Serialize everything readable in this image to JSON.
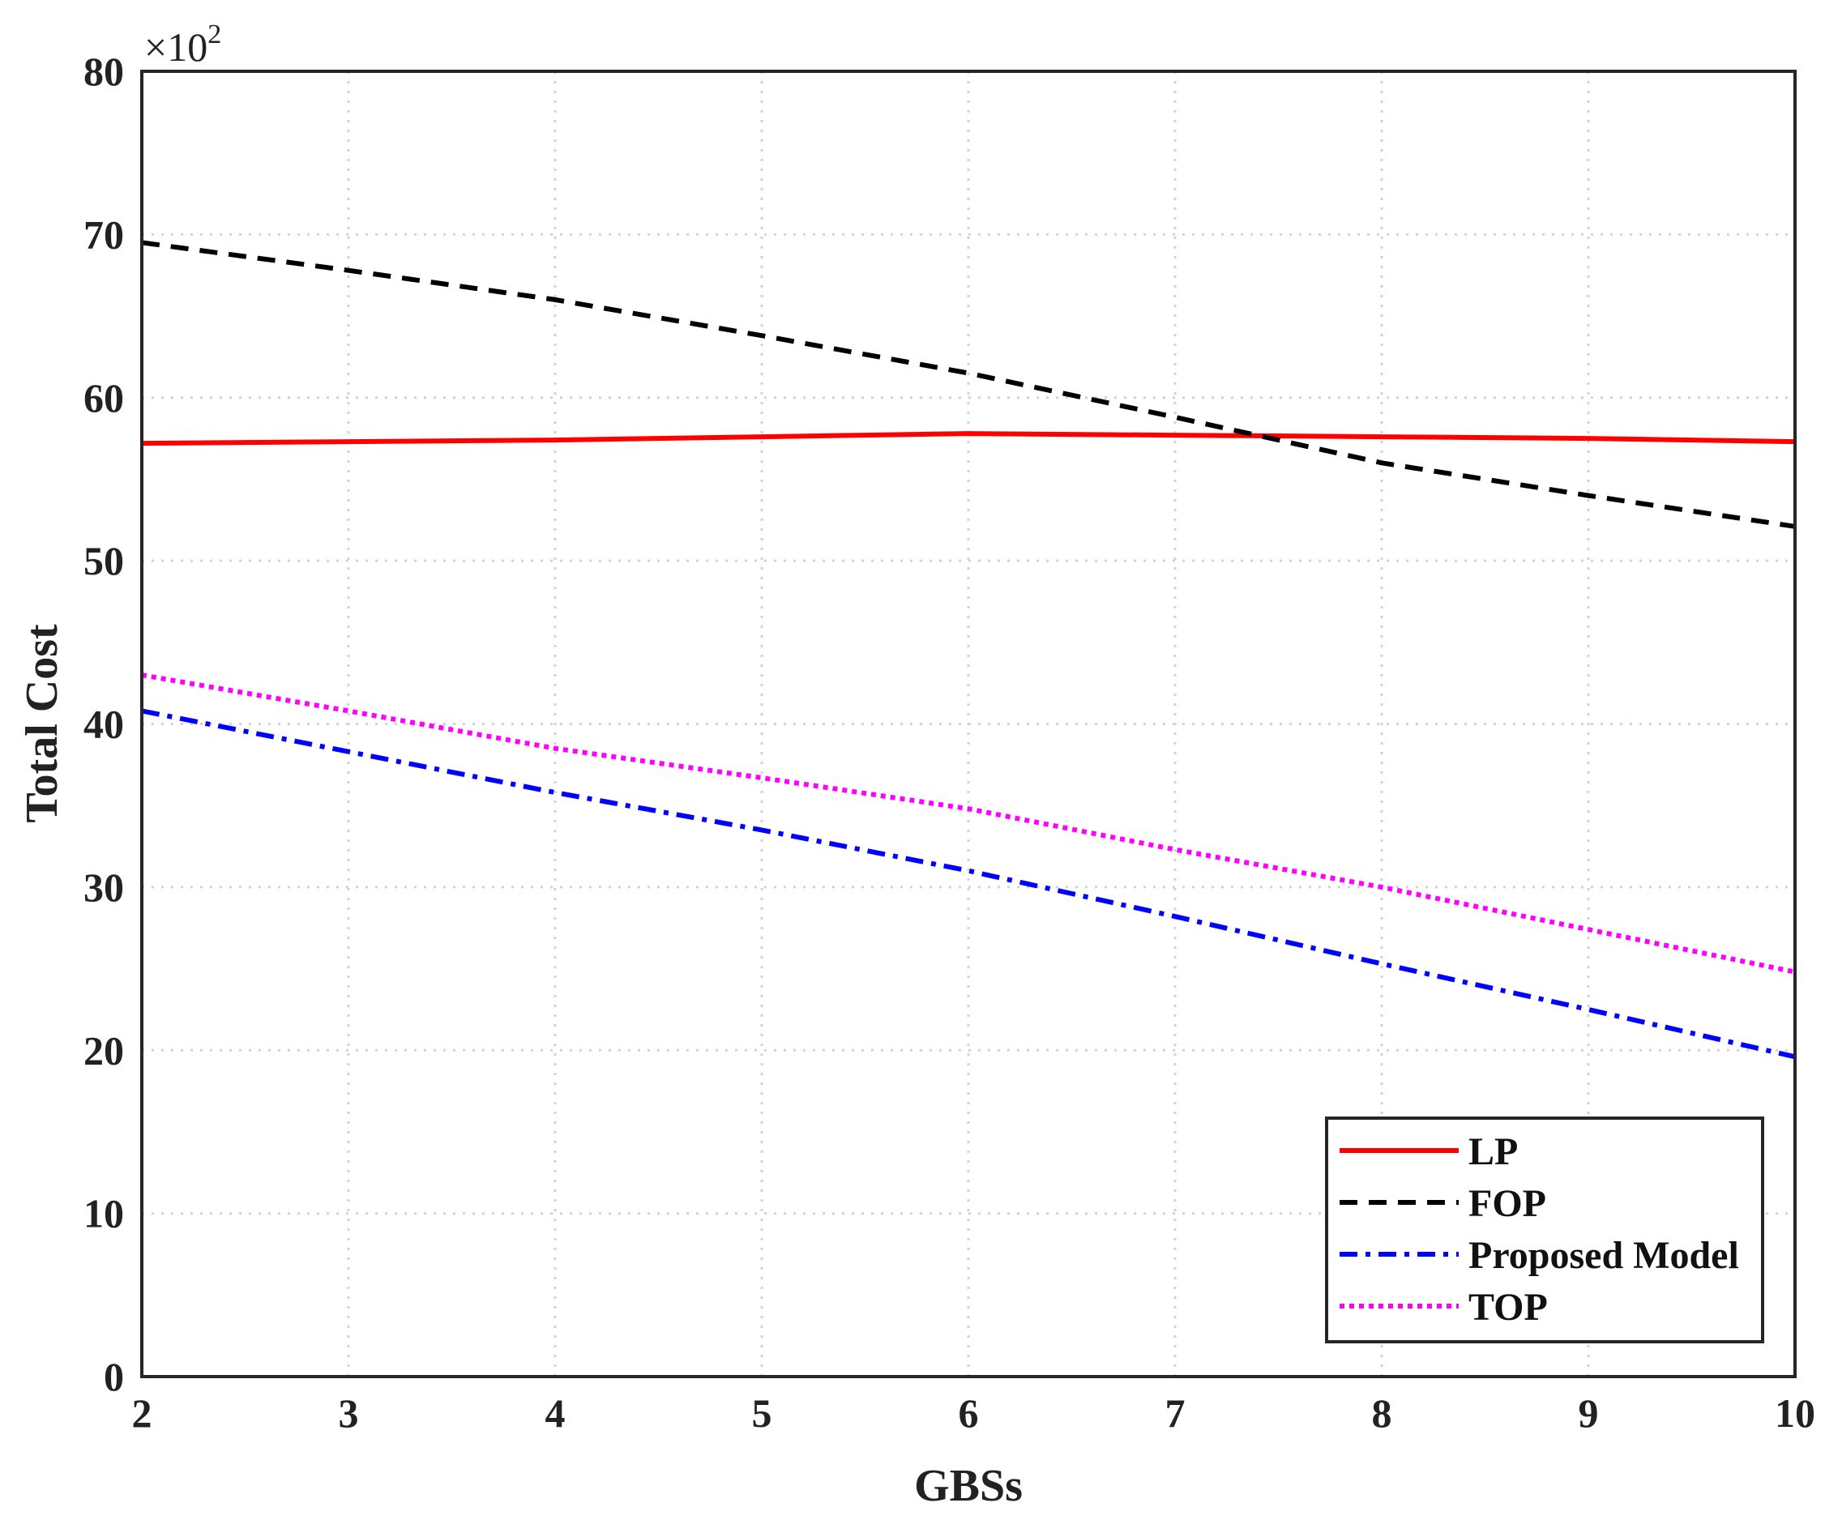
{
  "chart_data": {
    "type": "line",
    "xlabel": "GBSs",
    "ylabel": "Total Cost",
    "y_multiplier": {
      "base": "×10",
      "exponent": "2"
    },
    "xlim": [
      2,
      10
    ],
    "ylim": [
      0,
      80
    ],
    "xticks": [
      2,
      3,
      4,
      5,
      6,
      7,
      8,
      9,
      10
    ],
    "yticks": [
      0,
      10,
      20,
      30,
      40,
      50,
      60,
      70,
      80
    ],
    "grid": true,
    "legend_position": "bottom-right",
    "series": [
      {
        "name": "LP",
        "color": "#ff0000",
        "style": "solid",
        "x": [
          2,
          3,
          4,
          5,
          6,
          7,
          8,
          9,
          10
        ],
        "y": [
          57.2,
          57.3,
          57.4,
          57.6,
          57.8,
          57.7,
          57.6,
          57.5,
          57.3
        ]
      },
      {
        "name": "FOP",
        "color": "#000000",
        "style": "dashed",
        "x": [
          2,
          3,
          4,
          5,
          6,
          7,
          8,
          9,
          10
        ],
        "y": [
          69.5,
          67.8,
          66.0,
          63.8,
          61.5,
          58.8,
          56.0,
          54.0,
          52.1
        ]
      },
      {
        "name": "Proposed Model",
        "color": "#0000ff",
        "style": "dashdot",
        "x": [
          2,
          3,
          4,
          5,
          6,
          7,
          8,
          9,
          10
        ],
        "y": [
          40.8,
          38.3,
          35.8,
          33.5,
          31.0,
          28.2,
          25.3,
          22.5,
          19.6
        ]
      },
      {
        "name": "TOP",
        "color": "#ff00ff",
        "style": "dotted",
        "x": [
          2,
          3,
          4,
          5,
          6,
          7,
          8,
          9,
          10
        ],
        "y": [
          43.0,
          40.8,
          38.5,
          36.7,
          34.8,
          32.3,
          30.0,
          27.4,
          24.8
        ]
      }
    ]
  }
}
